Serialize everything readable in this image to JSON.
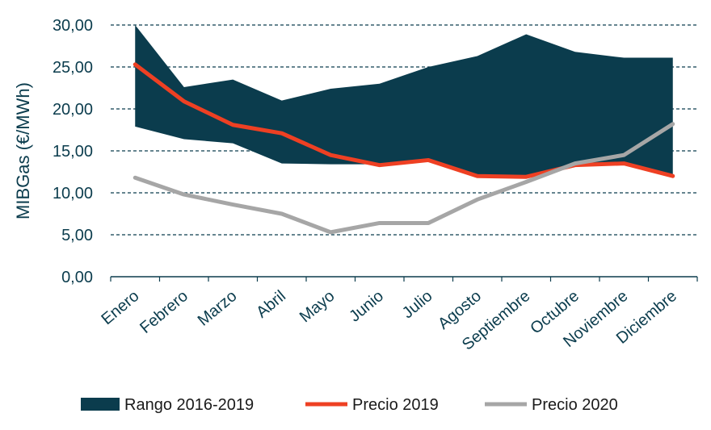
{
  "chart_data": {
    "type": "area",
    "ylabel": "MIBGas (€/MWh)",
    "ylim": [
      0,
      30
    ],
    "yticks": [
      "0,00",
      "5,00",
      "10,00",
      "15,00",
      "20,00",
      "25,00",
      "30,00"
    ],
    "categories": [
      "Enero",
      "Febrero",
      "Marzo",
      "Abril",
      "Mayo",
      "Junio",
      "Julio",
      "Agosto",
      "Septiembre",
      "Octubre",
      "Noviembre",
      "Diciembre"
    ],
    "grid": true,
    "legend_position": "bottom",
    "series": [
      {
        "name": "Rango 2016-2019",
        "kind": "range",
        "color": "#0b3c4d",
        "upper": [
          30.0,
          22.6,
          23.5,
          21.0,
          22.4,
          23.0,
          25.0,
          26.3,
          28.9,
          26.8,
          26.1,
          26.1
        ],
        "lower": [
          17.9,
          16.4,
          15.9,
          13.5,
          13.4,
          13.4,
          13.9,
          12.1,
          12.0,
          13.2,
          13.5,
          12.1
        ]
      },
      {
        "name": "Precio 2019",
        "kind": "line",
        "color": "#ee4023",
        "values": [
          25.3,
          20.9,
          18.1,
          17.1,
          14.5,
          13.3,
          13.9,
          12.0,
          11.9,
          13.3,
          13.5,
          12.0
        ]
      },
      {
        "name": "Precio 2020",
        "kind": "line",
        "color": "#a6a6a6",
        "values": [
          11.8,
          9.8,
          8.6,
          7.5,
          5.3,
          6.4,
          6.4,
          9.2,
          11.3,
          13.5,
          14.5,
          18.2
        ]
      }
    ]
  }
}
